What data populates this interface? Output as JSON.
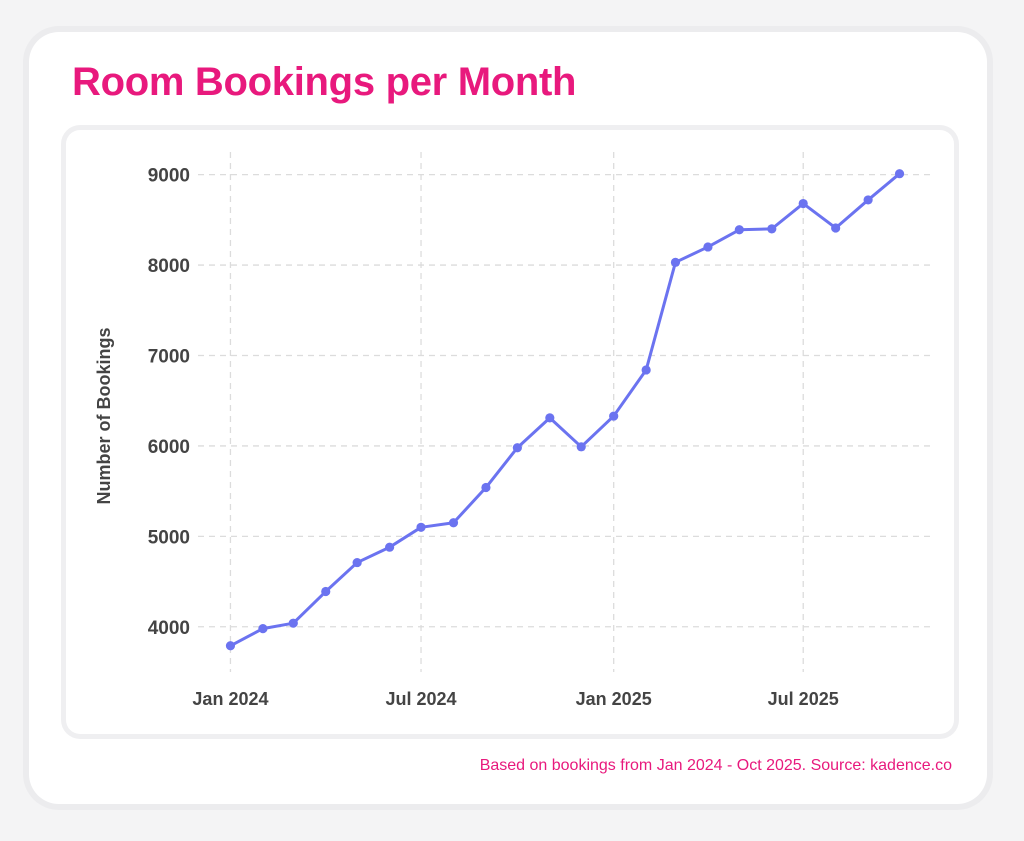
{
  "title": "Room Bookings per Month",
  "footer": "Based on bookings from Jan 2024 - Oct 2025. Source: kadence.co",
  "colors": {
    "accent": "#e8197d",
    "line": "#6b73f0",
    "grid": "#dcdcdc",
    "axis_text": "#444444"
  },
  "chart_data": {
    "type": "line",
    "title": "Room Bookings per Month",
    "xlabel": "",
    "ylabel": "Number of Bookings",
    "x": [
      "2024-01",
      "2024-02",
      "2024-03",
      "2024-04",
      "2024-05",
      "2024-06",
      "2024-07",
      "2024-08",
      "2024-09",
      "2024-10",
      "2024-11",
      "2024-12",
      "2025-01",
      "2025-02",
      "2025-03",
      "2025-04",
      "2025-05",
      "2025-06",
      "2025-07",
      "2025-08",
      "2025-09",
      "2025-10"
    ],
    "x_ticks": [
      "2024-01",
      "2024-07",
      "2025-01",
      "2025-07"
    ],
    "x_tick_labels": [
      "Jan 2024",
      "Jul 2024",
      "Jan 2025",
      "Jul 2025"
    ],
    "series": [
      {
        "values": [
          3790,
          3980,
          4040,
          4390,
          4710,
          4880,
          5100,
          5150,
          5540,
          5980,
          6310,
          5990,
          6330,
          6840,
          8030,
          8200,
          8390,
          8400,
          8680,
          8410,
          8720,
          9010
        ]
      }
    ],
    "y_ticks": [
      4000,
      5000,
      6000,
      7000,
      8000,
      9000
    ],
    "ylim": [
      3500,
      9250
    ],
    "grid": true,
    "legend": "none"
  }
}
